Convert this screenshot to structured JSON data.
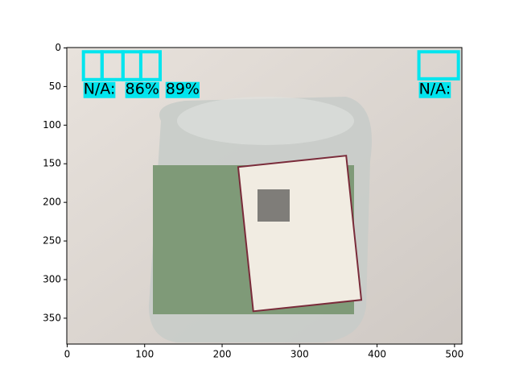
{
  "chart_data": {
    "type": "image",
    "xlim": [
      -0.5,
      509.5
    ],
    "ylim": [
      383.5,
      -0.5
    ],
    "xticks": [
      0,
      100,
      200,
      300,
      400,
      500
    ],
    "yticks": [
      0,
      50,
      100,
      150,
      200,
      250,
      300,
      350
    ],
    "box_color": "#00e5ee",
    "boxes": [
      [
        21,
        5,
        45,
        41
      ],
      [
        45,
        5,
        72,
        41
      ],
      [
        72,
        5,
        95,
        41
      ],
      [
        95,
        5,
        120,
        41
      ],
      [
        454,
        5,
        505,
        40
      ]
    ],
    "labels": [
      {
        "text": "N/A:",
        "x": 21,
        "y": 54
      },
      {
        "text": "86%",
        "x": 75,
        "y": 54
      },
      {
        "text": "89%",
        "x": 127,
        "y": 54
      },
      {
        "text": "N/A:",
        "x": 454,
        "y": 54
      }
    ]
  }
}
